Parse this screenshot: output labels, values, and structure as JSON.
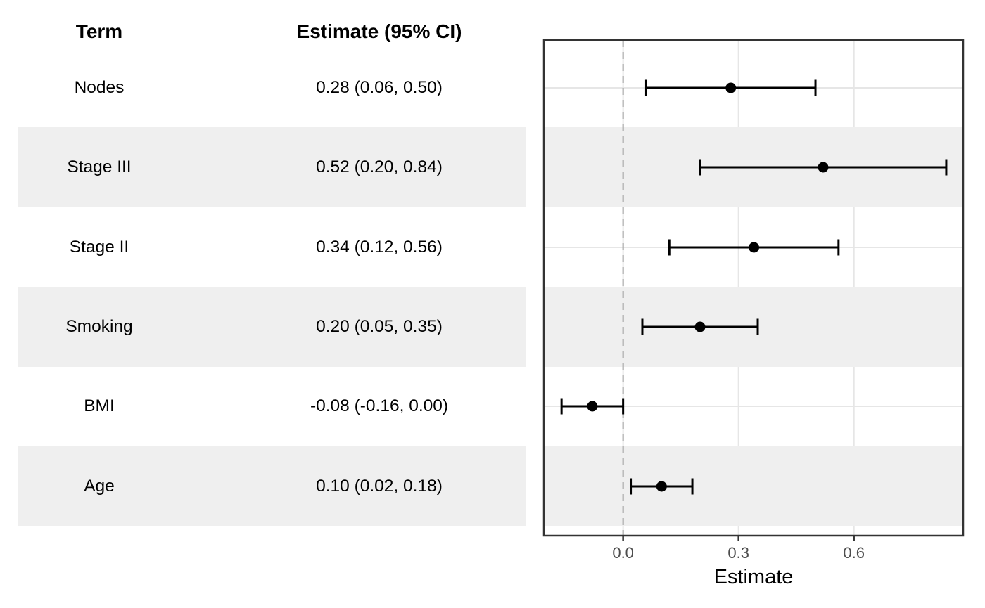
{
  "table": {
    "headers": {
      "term": "Term",
      "estimate": "Estimate (95% CI)"
    },
    "rows": [
      {
        "term": "Nodes",
        "estimate_ci": "0.28 (0.06, 0.50)"
      },
      {
        "term": "Stage III",
        "estimate_ci": "0.52 (0.20, 0.84)"
      },
      {
        "term": "Stage II",
        "estimate_ci": "0.34 (0.12, 0.56)"
      },
      {
        "term": "Smoking",
        "estimate_ci": "0.20 (0.05, 0.35)"
      },
      {
        "term": "BMI",
        "estimate_ci": "-0.08 (-0.16, 0.00)"
      },
      {
        "term": "Age",
        "estimate_ci": "0.10 (0.02, 0.18)"
      }
    ]
  },
  "chart_data": {
    "type": "scatter",
    "subtype": "forest-plot-with-error-bars",
    "categories": [
      "Nodes",
      "Stage III",
      "Stage II",
      "Smoking",
      "BMI",
      "Age"
    ],
    "series": [
      {
        "name": "estimate",
        "values": [
          0.28,
          0.52,
          0.34,
          0.2,
          -0.08,
          0.1
        ]
      },
      {
        "name": "ci_lower",
        "values": [
          0.06,
          0.2,
          0.12,
          0.05,
          -0.16,
          0.02
        ]
      },
      {
        "name": "ci_upper",
        "values": [
          0.5,
          0.84,
          0.56,
          0.35,
          0.0,
          0.18
        ]
      }
    ],
    "title": "",
    "xlabel": "Estimate",
    "ylabel": "",
    "xlim": [
      -0.206,
      0.884
    ],
    "x_ticks": [
      0.0,
      0.3,
      0.6
    ],
    "x_tick_labels": [
      "0.0",
      "0.3",
      "0.6"
    ],
    "reference_line_x": 0,
    "grid": "major-only",
    "striped_row_indices": [
      1,
      3,
      5
    ],
    "legend": "none",
    "colors": {
      "marker": "#000000",
      "error_bar": "#000000",
      "stripe": "#EFEFEF",
      "gridline": "#E6E6E6",
      "reference_line": "#A0A0A0",
      "panel_border": "#333333",
      "tick_mark": "#333333",
      "tick_label": "#4D4D4D",
      "axis_title": "#000000"
    }
  }
}
